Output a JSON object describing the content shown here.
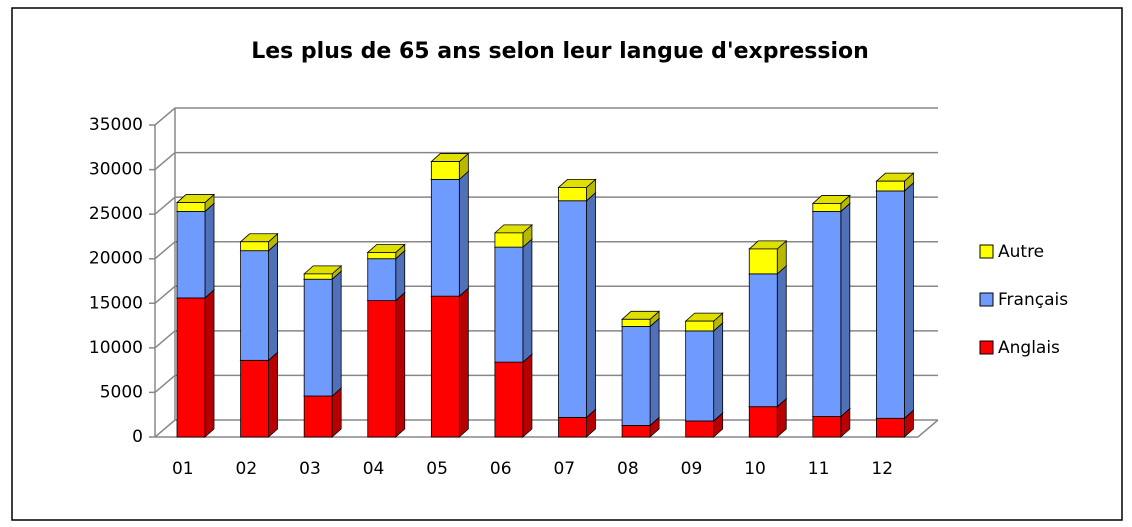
{
  "chart_data": {
    "type": "bar",
    "stacked": true,
    "three_d": true,
    "title": "Les plus de 65 ans selon leur langue d'expression",
    "categories": [
      "01",
      "02",
      "03",
      "04",
      "05",
      "06",
      "07",
      "08",
      "09",
      "10",
      "11",
      "12"
    ],
    "series": [
      {
        "name": "Anglais",
        "color": "#ff0000",
        "values": [
          15600,
          8600,
          4600,
          15300,
          15800,
          8400,
          2200,
          1300,
          1800,
          3400,
          2300,
          2100
        ]
      },
      {
        "name": "Français",
        "color": "#6f9bff",
        "values": [
          9700,
          12300,
          13100,
          4700,
          13100,
          12900,
          24300,
          11100,
          10100,
          14900,
          23000,
          25500
        ]
      },
      {
        "name": "Autre",
        "color": "#ffff00",
        "values": [
          1000,
          1000,
          600,
          700,
          2000,
          1600,
          1500,
          800,
          1100,
          2800,
          900,
          1100
        ]
      }
    ],
    "ylim": [
      0,
      35000
    ],
    "yticks": [
      0,
      5000,
      10000,
      15000,
      20000,
      25000,
      30000,
      35000
    ],
    "grid": true,
    "legend": "right"
  }
}
